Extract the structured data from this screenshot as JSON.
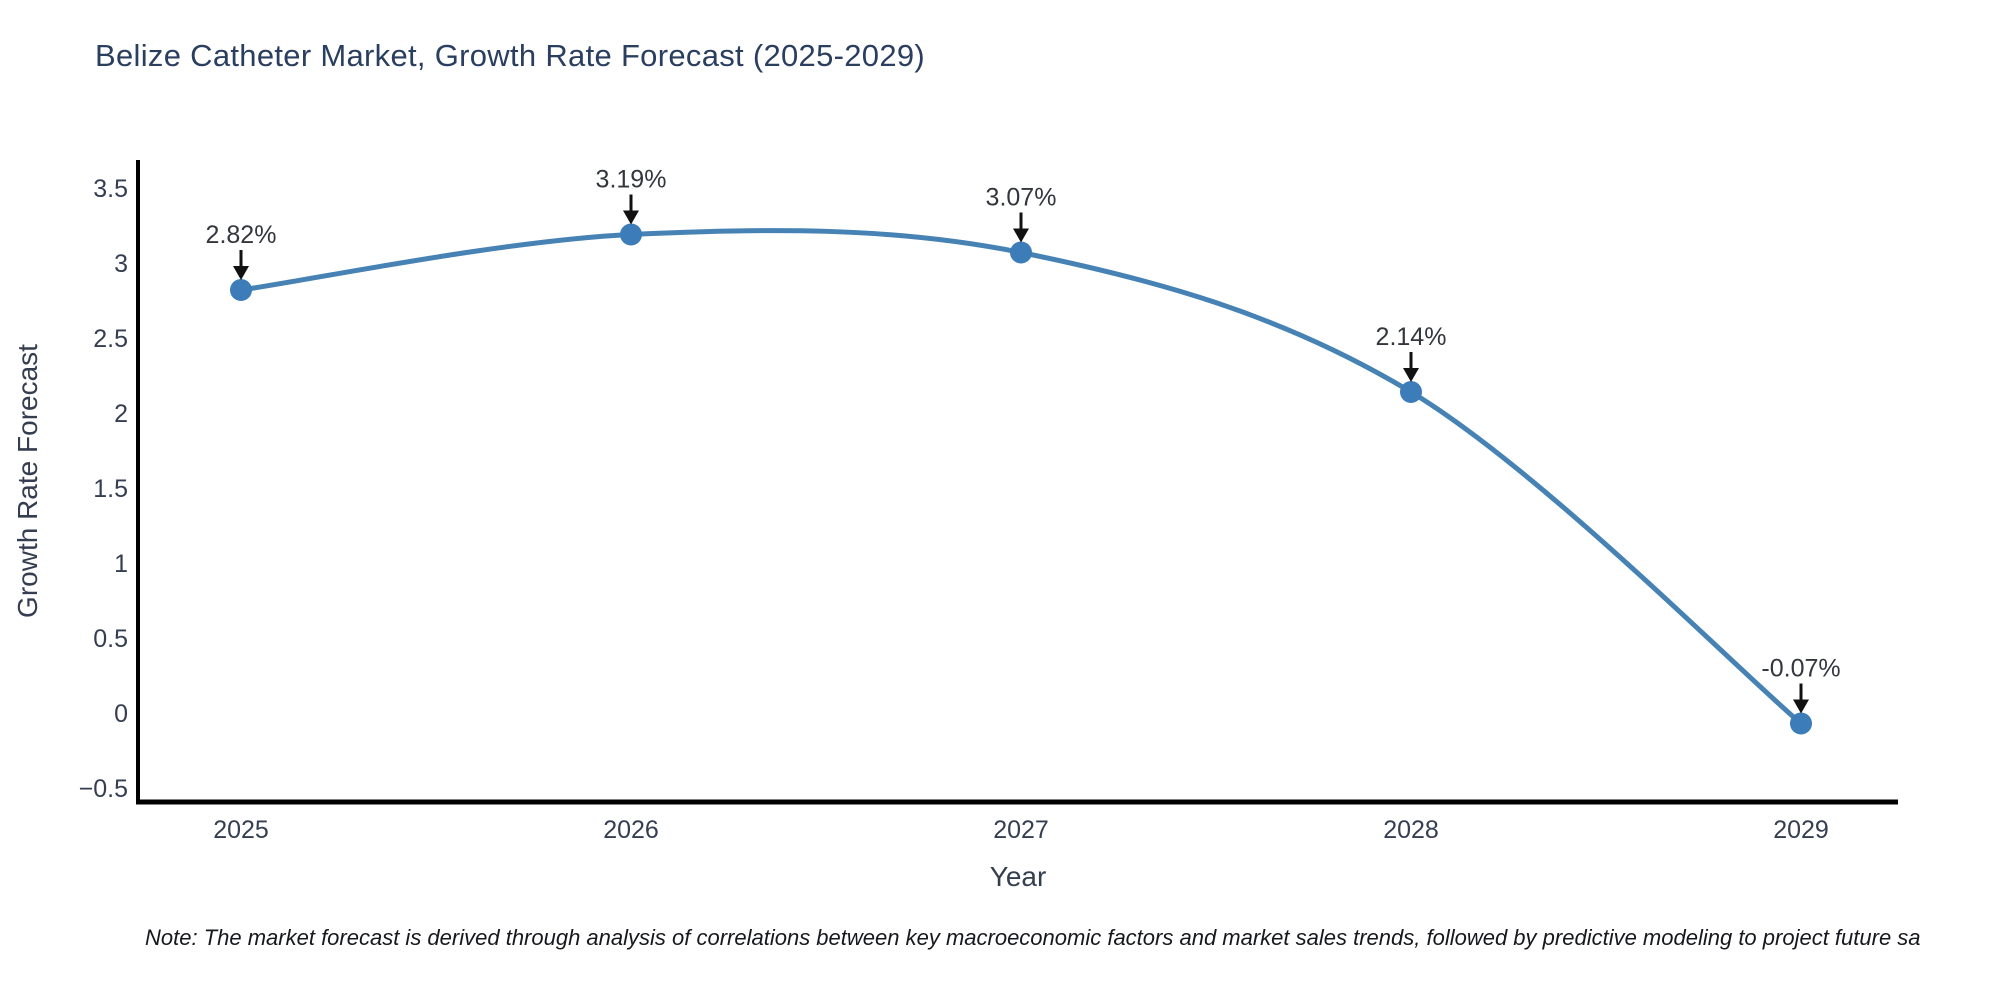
{
  "title": "Belize Catheter Market, Growth Rate Forecast (2025-2029)",
  "note": "Note: The market forecast is derived through analysis of correlations between key macroeconomic factors and market sales trends, followed by predictive modeling to project future sa",
  "colors": {
    "line": "#4682b4",
    "marker": "#3c7cb8",
    "title_text": "#2a3f5f",
    "tick_text": "#353e50",
    "annotation_text": "#33363d",
    "arrow": "#111111",
    "axis_line": "#000000",
    "background": "#ffffff"
  },
  "chart_data": {
    "type": "line",
    "title": "Belize Catheter Market, Growth Rate Forecast (2025-2029)",
    "xlabel": "Year",
    "ylabel": "Growth Rate Forecast",
    "x": [
      2025,
      2026,
      2027,
      2028,
      2029
    ],
    "values": [
      2.82,
      3.19,
      3.07,
      2.14,
      -0.07
    ],
    "point_labels": [
      "2.82%",
      "3.19%",
      "3.07%",
      "2.14%",
      "-0.07%"
    ],
    "x_tick_labels": [
      "2025",
      "2026",
      "2027",
      "2028",
      "2029"
    ],
    "y_ticks": [
      3.5,
      3,
      2.5,
      2,
      1.5,
      1,
      0.5,
      0,
      -0.5
    ],
    "y_tick_labels": [
      "3.5",
      "3",
      "2.5",
      "2",
      "1.5",
      "1",
      "0.5",
      "0",
      "−0.5"
    ],
    "ylim": [
      -0.6,
      3.7
    ],
    "grid": false,
    "legend": "none",
    "line_shape": "spline",
    "marker": "circle",
    "annotation_style": "arrow-down"
  }
}
